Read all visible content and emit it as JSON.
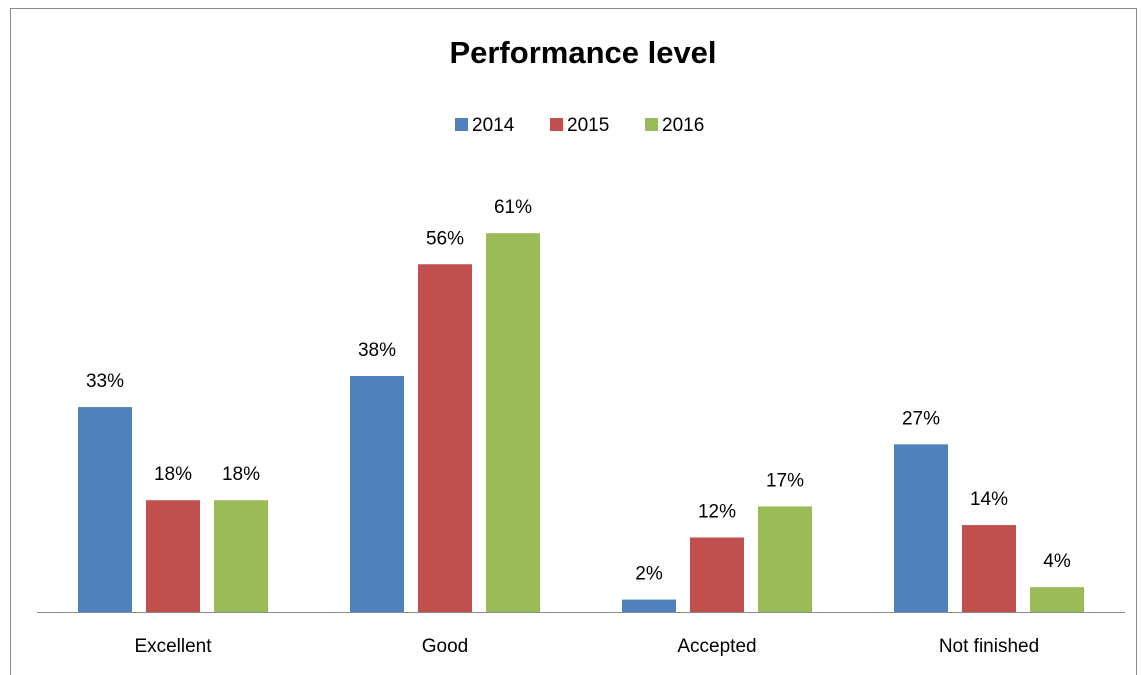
{
  "chart_data": {
    "type": "bar",
    "title": "Performance level",
    "categories": [
      "Excellent",
      "Good",
      "Accepted",
      "Not finished"
    ],
    "series": [
      {
        "name": "2014",
        "color": "#4f81bd",
        "values": [
          33,
          38,
          2,
          27
        ],
        "value_labels": [
          "33%",
          "38%",
          "2%",
          "27%"
        ]
      },
      {
        "name": "2015",
        "color": "#c0504d",
        "values": [
          18,
          56,
          12,
          14
        ],
        "value_labels": [
          "18%",
          "56%",
          "12%",
          "14%"
        ]
      },
      {
        "name": "2016",
        "color": "#9bbb59",
        "values": [
          18,
          61,
          17,
          4
        ],
        "value_labels": [
          "18%",
          "61%",
          "17%",
          "4%"
        ]
      }
    ],
    "legend": "top"
  }
}
